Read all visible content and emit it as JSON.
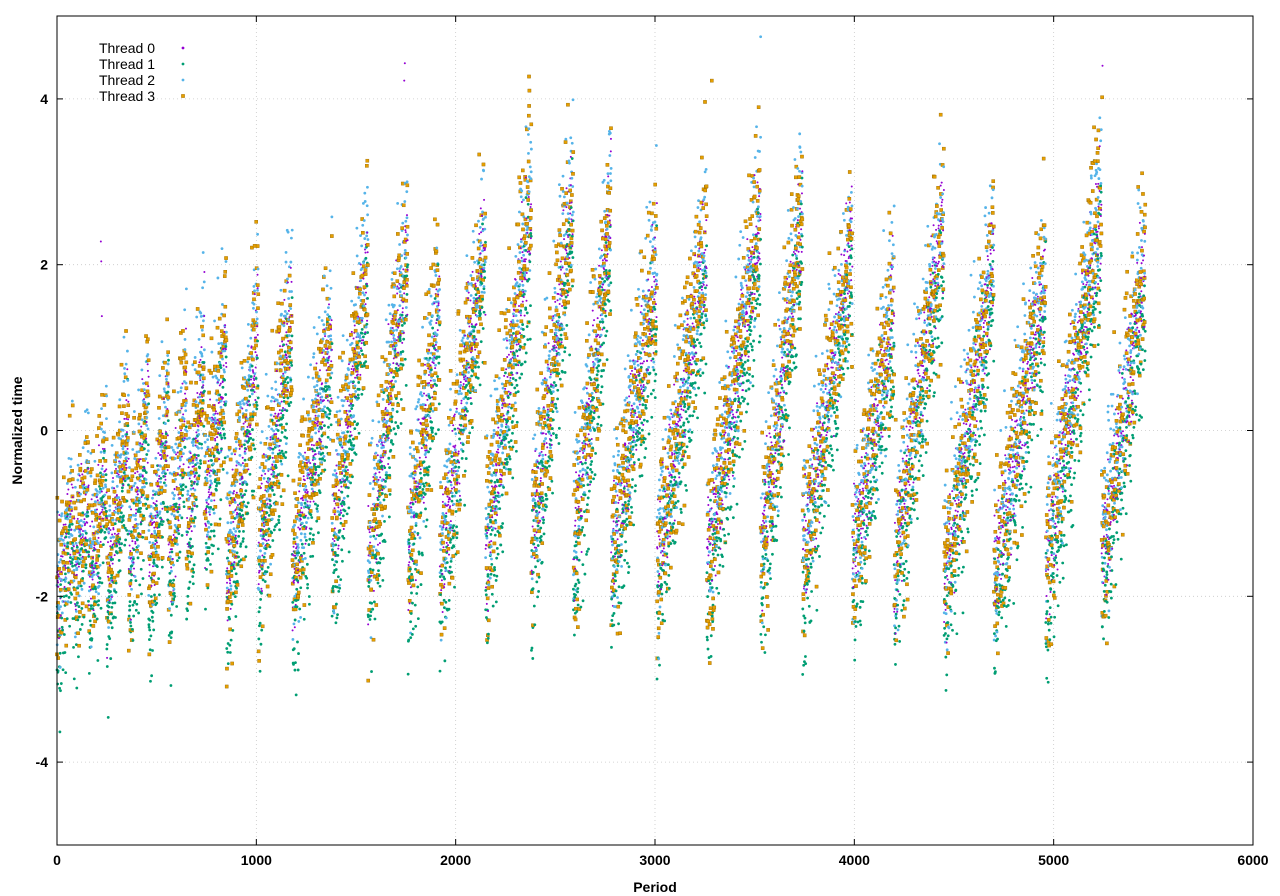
{
  "chart_data": {
    "type": "scatter",
    "title": "",
    "xlabel": "Period",
    "ylabel": "Normalized time",
    "xlim": [
      0,
      6000
    ],
    "ylim": [
      -5,
      5
    ],
    "x_ticks": [
      0,
      1000,
      2000,
      3000,
      4000,
      5000,
      6000
    ],
    "y_ticks": [
      -4,
      -2,
      0,
      2,
      4
    ],
    "x_tick_labels": [
      "0",
      "1000",
      "2000",
      "3000",
      "4000",
      "5000",
      "6000"
    ],
    "y_tick_labels": [
      "-4",
      "-2",
      "0",
      "2",
      "4"
    ],
    "grid": true,
    "legend_position": "top-left",
    "x_range_data": [
      0,
      5460
    ],
    "series": [
      {
        "name": "Thread 0",
        "color": "#9400d3",
        "marker": "dot"
      },
      {
        "name": "Thread 1",
        "color": "#009e73",
        "marker": "dot"
      },
      {
        "name": "Thread 2",
        "color": "#56b4e9",
        "marker": "dot"
      },
      {
        "name": "Thread 3",
        "color": "#e69f00",
        "marker": "square"
      }
    ],
    "trend_cycles": [
      {
        "x_start": 0,
        "x_end": 80,
        "low": -2.1,
        "high": -0.9
      },
      {
        "x_start": 80,
        "x_end": 160,
        "low": -1.8,
        "high": -0.6
      },
      {
        "x_start": 160,
        "x_end": 250,
        "low": -1.8,
        "high": -0.4
      },
      {
        "x_start": 250,
        "x_end": 360,
        "low": -1.9,
        "high": 0.2
      },
      {
        "x_start": 360,
        "x_end": 460,
        "low": -1.7,
        "high": 0.3
      },
      {
        "x_start": 460,
        "x_end": 560,
        "low": -1.9,
        "high": 0.4
      },
      {
        "x_start": 560,
        "x_end": 650,
        "low": -1.9,
        "high": 0.6
      },
      {
        "x_start": 650,
        "x_end": 740,
        "low": -1.3,
        "high": 1.0
      },
      {
        "x_start": 740,
        "x_end": 850,
        "low": -1.1,
        "high": 1.1
      },
      {
        "x_start": 850,
        "x_end": 1010,
        "low": -1.9,
        "high": 1.3
      },
      {
        "x_start": 1010,
        "x_end": 1180,
        "low": -1.6,
        "high": 1.5
      },
      {
        "x_start": 1180,
        "x_end": 1380,
        "low": -1.9,
        "high": 1.2
      },
      {
        "x_start": 1380,
        "x_end": 1560,
        "low": -1.3,
        "high": 2.0
      },
      {
        "x_start": 1560,
        "x_end": 1760,
        "low": -1.7,
        "high": 2.3
      },
      {
        "x_start": 1760,
        "x_end": 1920,
        "low": -1.6,
        "high": 1.6
      },
      {
        "x_start": 1920,
        "x_end": 2150,
        "low": -1.7,
        "high": 2.4
      },
      {
        "x_start": 2150,
        "x_end": 2380,
        "low": -1.5,
        "high": 2.7
      },
      {
        "x_start": 2380,
        "x_end": 2590,
        "low": -1.4,
        "high": 2.9
      },
      {
        "x_start": 2590,
        "x_end": 2780,
        "low": -1.5,
        "high": 2.7
      },
      {
        "x_start": 2780,
        "x_end": 3010,
        "low": -1.6,
        "high": 2.0
      },
      {
        "x_start": 3010,
        "x_end": 3260,
        "low": -1.6,
        "high": 2.3
      },
      {
        "x_start": 3260,
        "x_end": 3530,
        "low": -1.7,
        "high": 2.6
      },
      {
        "x_start": 3530,
        "x_end": 3740,
        "low": -1.6,
        "high": 2.7
      },
      {
        "x_start": 3740,
        "x_end": 3990,
        "low": -1.6,
        "high": 2.3
      },
      {
        "x_start": 3990,
        "x_end": 4200,
        "low": -1.6,
        "high": 1.6
      },
      {
        "x_start": 4200,
        "x_end": 4450,
        "low": -1.7,
        "high": 2.6
      },
      {
        "x_start": 4450,
        "x_end": 4700,
        "low": -1.9,
        "high": 2.1
      },
      {
        "x_start": 4700,
        "x_end": 4960,
        "low": -1.8,
        "high": 1.9
      },
      {
        "x_start": 4960,
        "x_end": 5240,
        "low": -1.7,
        "high": 2.8
      },
      {
        "x_start": 5240,
        "x_end": 5460,
        "low": -1.6,
        "high": 2.0
      }
    ],
    "notable_points": [
      {
        "series": "Thread 0",
        "x": 220,
        "y": 2.28
      },
      {
        "series": "Thread 0",
        "x": 222,
        "y": 2.04
      },
      {
        "series": "Thread 0",
        "x": 225,
        "y": 1.38
      },
      {
        "series": "Thread 0",
        "x": 1745,
        "y": 4.43
      },
      {
        "series": "Thread 0",
        "x": 1742,
        "y": 4.22
      },
      {
        "series": "Thread 2",
        "x": 3530,
        "y": 4.75
      },
      {
        "series": "Thread 3",
        "x": 2368,
        "y": 4.27
      },
      {
        "series": "Thread 3",
        "x": 2370,
        "y": 4.1
      },
      {
        "series": "Thread 3",
        "x": 3285,
        "y": 4.22
      },
      {
        "series": "Thread 3",
        "x": 3520,
        "y": 3.9
      },
      {
        "series": "Thread 0",
        "x": 5245,
        "y": 4.4
      },
      {
        "series": "Thread 3",
        "x": 5243,
        "y": 4.02
      },
      {
        "series": "Thread 3",
        "x": 4950,
        "y": 3.28
      },
      {
        "series": "Thread 1",
        "x": 4545,
        "y": -2.2
      },
      {
        "series": "Thread 3",
        "x": 0,
        "y": -2.7
      },
      {
        "series": "Thread 3",
        "x": 1210,
        "y": -2.0
      },
      {
        "series": "Thread 3",
        "x": 4720,
        "y": -1.98
      }
    ]
  }
}
